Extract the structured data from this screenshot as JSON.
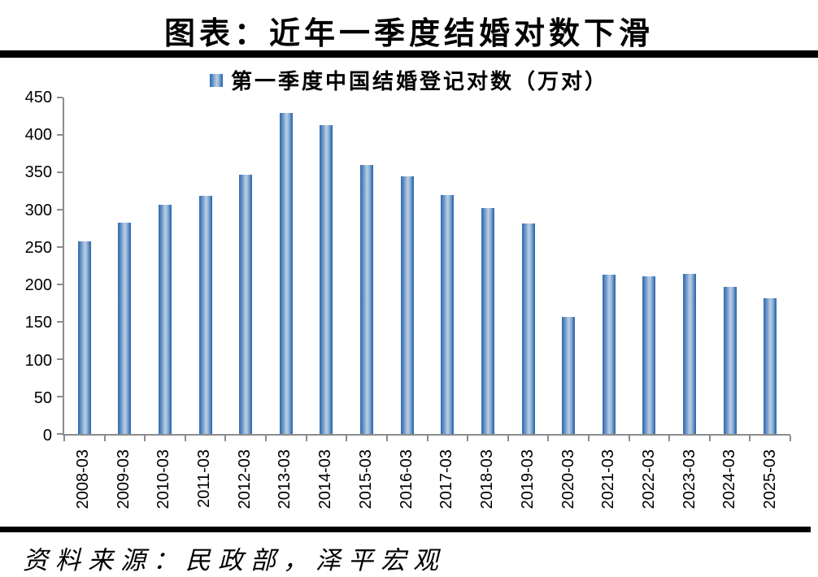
{
  "page": {
    "title": "图表：近年一季度结婚对数下滑",
    "source_note": "资料来源：民政部，泽平宏观"
  },
  "legend": {
    "label": "第一季度中国结婚登记对数（万对）",
    "swatch_icon": "blue-gradient-bar-swatch"
  },
  "colors": {
    "bar_edge": "#2F6BAE",
    "bar_light": "#B6CCE5",
    "axis": "#8C8C8C",
    "rule": "#000000",
    "background": "#FFFFFF",
    "text": "#000000"
  },
  "chart_data": {
    "type": "bar",
    "title": "图表：近年一季度结婚对数下滑",
    "series_name": "第一季度中国结婚登记对数（万对）",
    "categories": [
      "2008-03",
      "2009-03",
      "2010-03",
      "2011-03",
      "2012-03",
      "2013-03",
      "2014-03",
      "2015-03",
      "2016-03",
      "2017-03",
      "2018-03",
      "2019-03",
      "2020-03",
      "2021-03",
      "2022-03",
      "2023-03",
      "2024-03",
      "2025-03"
    ],
    "values": [
      258,
      283,
      306,
      318,
      347,
      429,
      413,
      360,
      345,
      320,
      302,
      281,
      156,
      213,
      211,
      214,
      197,
      181
    ],
    "xlabel": "",
    "ylabel": "",
    "ylim": [
      0,
      450
    ],
    "ytick_step": 50,
    "grid": false,
    "legend_position": "top",
    "x_tick_label_rotation_deg": -90,
    "source": "资料来源：民政部，泽平宏观"
  }
}
